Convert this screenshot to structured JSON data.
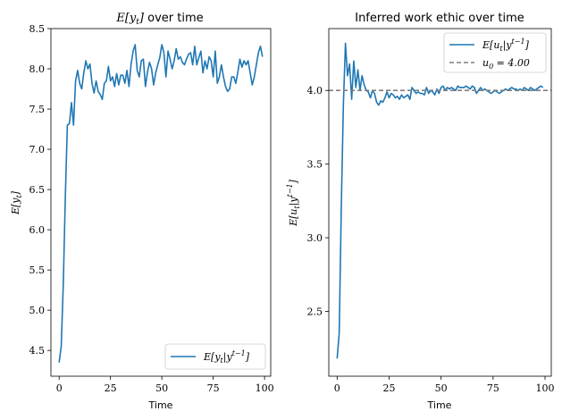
{
  "chart_data": [
    {
      "type": "line",
      "title": "E[y_t] over time",
      "xlabel": "Time",
      "ylabel": "E[y_t]",
      "xlim": [
        -4,
        103
      ],
      "ylim": [
        4.18,
        8.5
      ],
      "xticks": [
        0,
        25,
        50,
        75,
        100
      ],
      "yticks": [
        4.5,
        5.0,
        5.5,
        6.0,
        6.5,
        7.0,
        7.5,
        8.0,
        8.5
      ],
      "ytick_labels": [
        "4.5",
        "5.0",
        "5.5",
        "6.0",
        "6.5",
        "7.0",
        "7.5",
        "8.0",
        "8.5"
      ],
      "legend_position": "lower-right",
      "series": [
        {
          "name": "E[y_t | y^{t-1}]",
          "color": "#1f77b4",
          "style": "solid",
          "x": [
            0,
            1,
            2,
            3,
            4,
            5,
            6,
            7,
            8,
            9,
            10,
            11,
            12,
            13,
            14,
            15,
            16,
            17,
            18,
            19,
            20,
            21,
            22,
            23,
            24,
            25,
            26,
            27,
            28,
            29,
            30,
            31,
            32,
            33,
            34,
            35,
            36,
            37,
            38,
            39,
            40,
            41,
            42,
            43,
            44,
            45,
            46,
            47,
            48,
            49,
            50,
            51,
            52,
            53,
            54,
            55,
            56,
            57,
            58,
            59,
            60,
            61,
            62,
            63,
            64,
            65,
            66,
            67,
            68,
            69,
            70,
            71,
            72,
            73,
            74,
            75,
            76,
            77,
            78,
            79,
            80,
            81,
            82,
            83,
            84,
            85,
            86,
            87,
            88,
            89,
            90,
            91,
            92,
            93,
            94,
            95,
            96,
            97,
            98,
            99
          ],
          "values": [
            4.35,
            4.55,
            5.3,
            6.4,
            7.3,
            7.32,
            7.58,
            7.3,
            7.85,
            7.98,
            7.82,
            7.75,
            7.95,
            8.1,
            8.0,
            8.06,
            7.82,
            7.7,
            7.85,
            7.72,
            7.68,
            7.62,
            7.82,
            7.85,
            8.03,
            7.85,
            7.9,
            7.78,
            7.94,
            7.8,
            7.92,
            7.92,
            7.82,
            7.98,
            7.78,
            8.05,
            8.22,
            8.3,
            7.98,
            7.9,
            8.1,
            8.12,
            7.78,
            7.96,
            8.08,
            8.0,
            7.8,
            7.95,
            8.05,
            8.14,
            8.3,
            8.2,
            7.9,
            8.22,
            8.12,
            8.0,
            8.1,
            8.25,
            8.12,
            8.15,
            8.08,
            8.05,
            8.12,
            8.18,
            8.2,
            8.05,
            8.28,
            8.05,
            8.14,
            8.22,
            7.95,
            8.1,
            8.0,
            8.15,
            8.1,
            7.9,
            8.22,
            7.82,
            7.9,
            8.05,
            7.9,
            7.78,
            7.72,
            7.75,
            7.9,
            7.9,
            7.82,
            7.96,
            8.12,
            8.02,
            8.1,
            8.05,
            8.1,
            7.95,
            7.8,
            7.9,
            8.05,
            8.2,
            8.28,
            8.15
          ]
        }
      ]
    },
    {
      "type": "line",
      "title": "Inferred work ethic over time",
      "xlabel": "Time",
      "ylabel": "E[u_t | y^{t-1}]",
      "xlim": [
        -4,
        103
      ],
      "ylim": [
        2.06,
        4.42
      ],
      "xticks": [
        0,
        25,
        50,
        75,
        100
      ],
      "yticks": [
        2.5,
        3.0,
        3.5,
        4.0
      ],
      "ytick_labels": [
        "2.5",
        "3.0",
        "3.5",
        "4.0"
      ],
      "legend_position": "top-right",
      "series": [
        {
          "name": "E[u_t | y^{t-1}]",
          "color": "#1f77b4",
          "style": "solid",
          "x": [
            0,
            1,
            2,
            3,
            4,
            5,
            6,
            7,
            8,
            9,
            10,
            11,
            12,
            13,
            14,
            15,
            16,
            17,
            18,
            19,
            20,
            21,
            22,
            23,
            24,
            25,
            26,
            27,
            28,
            29,
            30,
            31,
            32,
            33,
            34,
            35,
            36,
            37,
            38,
            39,
            40,
            41,
            42,
            43,
            44,
            45,
            46,
            47,
            48,
            49,
            50,
            51,
            52,
            53,
            54,
            55,
            56,
            57,
            58,
            59,
            60,
            61,
            62,
            63,
            64,
            65,
            66,
            67,
            68,
            69,
            70,
            71,
            72,
            73,
            74,
            75,
            76,
            77,
            78,
            79,
            80,
            81,
            82,
            83,
            84,
            85,
            86,
            87,
            88,
            89,
            90,
            91,
            92,
            93,
            94,
            95,
            96,
            97,
            98,
            99
          ],
          "values": [
            2.18,
            2.35,
            3.2,
            3.9,
            4.32,
            4.1,
            4.18,
            3.94,
            4.2,
            4.02,
            4.14,
            4.0,
            4.1,
            4.04,
            4.0,
            3.99,
            3.95,
            4.0,
            3.98,
            3.92,
            3.9,
            3.93,
            3.92,
            3.95,
            3.99,
            3.95,
            3.98,
            3.97,
            3.95,
            3.96,
            3.94,
            3.97,
            3.95,
            3.96,
            3.97,
            3.94,
            4.02,
            4.0,
            3.98,
            3.99,
            3.98,
            3.98,
            3.97,
            4.02,
            3.98,
            4.0,
            3.99,
            3.97,
            4.01,
            3.98,
            4.02,
            4.03,
            4.0,
            4.02,
            4.01,
            4.02,
            4.01,
            4.0,
            4.03,
            4.02,
            4.02,
            4.02,
            4.03,
            4.02,
            4.01,
            4.03,
            4.02,
            3.98,
            4.0,
            4.02,
            4.0,
            4.01,
            4.0,
            3.99,
            3.98,
            3.99,
            4.0,
            3.99,
            3.98,
            3.99,
            4.0,
            4.01,
            4.0,
            4.01,
            4.02,
            4.01,
            4.01,
            4.0,
            4.01,
            4.0,
            4.02,
            4.01,
            4.0,
            4.02,
            4.01,
            4.0,
            4.01,
            4.02,
            4.03,
            4.02
          ]
        },
        {
          "name": "u_0 = 4.00",
          "color": "#7f7f7f",
          "style": "dashed",
          "constant": 4.0
        }
      ]
    }
  ],
  "labels": {
    "left_title_main": "E[y",
    "left_title_sub": "t",
    "left_title_close": "]",
    "left_title_rest": " over time",
    "right_title": "Inferred work ethic over time",
    "xlabel": "Time",
    "left_ylabel_main": "E[y",
    "left_ylabel_sub": "t",
    "left_ylabel_close": "]",
    "right_ylabel_main": "E[u",
    "right_ylabel_sub": "t",
    "right_ylabel_mid": "|y",
    "right_ylabel_sup": "t−1",
    "right_ylabel_close": "]",
    "left_legend_main": "E[y",
    "left_legend_sub": "t",
    "left_legend_mid": "|y",
    "left_legend_sup": "t−1",
    "left_legend_close": "]",
    "right_legend1_main": "E[u",
    "right_legend1_sub": "t",
    "right_legend1_mid": "|y",
    "right_legend1_sup": "t−1",
    "right_legend1_close": "]",
    "right_legend2_main": "u",
    "right_legend2_sub": "0",
    "right_legend2_rest": " = 4.00"
  }
}
